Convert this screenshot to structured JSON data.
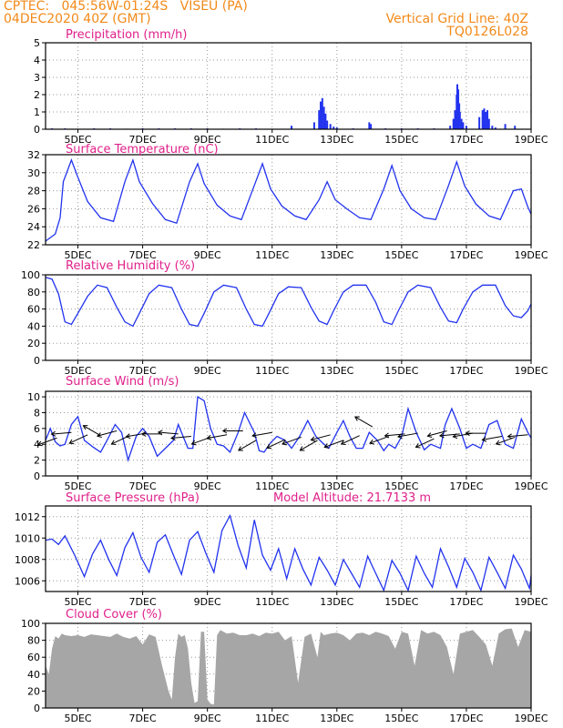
{
  "header": {
    "line1": "CPTEC:   045:56W-01:24S   VISEU (PA)",
    "line2": "04DEC2020 40Z (GMT)",
    "grid_note": "Vertical Grid Line: 40Z",
    "code": "TQ0126L028"
  },
  "colors": {
    "header": "#f28a1a",
    "title": "#e0208a",
    "series": "#2233ee",
    "cloud": "#a6a6a6",
    "grid": "#999999"
  },
  "x_axis": {
    "start": 4.0,
    "end": 19.0,
    "ticks": [
      5,
      7,
      9,
      11,
      13,
      15,
      17,
      19
    ],
    "tick_labels": [
      "5DEC",
      "7DEC",
      "9DEC",
      "11DEC",
      "13DEC",
      "15DEC",
      "17DEC",
      "19DEC"
    ]
  },
  "panels": [
    {
      "id": "precipitation",
      "title": "Precipitation (mm/h)",
      "title2": "",
      "ylim": [
        0,
        5
      ],
      "yticks": [
        0,
        1,
        2,
        3,
        4,
        5
      ],
      "ytick_labels": [
        "0",
        "1",
        "2",
        "3",
        "4",
        "5"
      ]
    },
    {
      "id": "temperature",
      "title": "Surface Temperature (nC)",
      "title2": "",
      "ylim": [
        22,
        32
      ],
      "yticks": [
        22,
        24,
        26,
        28,
        30,
        32
      ],
      "ytick_labels": [
        "22",
        "24",
        "26",
        "28",
        "30",
        "32"
      ]
    },
    {
      "id": "humidity",
      "title": "Relative Humidity (%)",
      "title2": "",
      "ylim": [
        0,
        100
      ],
      "yticks": [
        0,
        20,
        40,
        60,
        80,
        100
      ],
      "ytick_labels": [
        "0",
        "20",
        "40",
        "60",
        "80",
        "100"
      ]
    },
    {
      "id": "wind",
      "title": "Surface Wind (m/s)",
      "title2": "",
      "ylim": [
        0,
        10.7
      ],
      "yticks": [
        0,
        2,
        4,
        6,
        8,
        10
      ],
      "ytick_labels": [
        "0",
        "2",
        "4",
        "6",
        "8",
        "10"
      ]
    },
    {
      "id": "pressure",
      "title": "Surface Pressure (hPa)",
      "title2": "Model Altitude: 21.7133 m",
      "ylim": [
        1005,
        1013
      ],
      "yticks": [
        1006,
        1008,
        1010,
        1012
      ],
      "ytick_labels": [
        "1006",
        "1008",
        "1010",
        "1012"
      ]
    },
    {
      "id": "cloud",
      "title": "Cloud Cover (%)",
      "title2": "",
      "ylim": [
        0,
        100
      ],
      "yticks": [
        0,
        20,
        40,
        60,
        80,
        100
      ],
      "ytick_labels": [
        "0",
        "20",
        "40",
        "60",
        "80",
        "100"
      ]
    }
  ],
  "chart_data": [
    {
      "type": "bar",
      "title": "Precipitation (mm/h)",
      "ylim": [
        0,
        5
      ],
      "x": [
        4.2,
        4.6,
        5.0,
        5.5,
        6.0,
        6.5,
        7.0,
        7.5,
        8.0,
        8.5,
        9.0,
        9.5,
        10.0,
        10.5,
        11.0,
        11.6,
        12.3,
        12.45,
        12.5,
        12.55,
        12.6,
        12.65,
        12.7,
        12.8,
        12.9,
        13.0,
        13.5,
        14.0,
        14.05,
        14.5,
        15.0,
        15.5,
        16.0,
        16.5,
        16.6,
        16.65,
        16.7,
        16.72,
        16.75,
        16.78,
        16.8,
        16.85,
        16.9,
        17.0,
        17.4,
        17.5,
        17.55,
        17.6,
        17.65,
        17.7,
        17.8,
        17.9,
        18.2,
        18.5
      ],
      "values": [
        0.05,
        0.05,
        0.03,
        0.05,
        0.05,
        0.03,
        0.05,
        0.05,
        0.05,
        0.05,
        0.05,
        0.03,
        0.05,
        0.05,
        0.03,
        0.2,
        0.4,
        1.1,
        1.6,
        1.8,
        1.3,
        0.9,
        0.5,
        0.3,
        0.15,
        0.1,
        0.05,
        0.4,
        0.3,
        0.05,
        0.05,
        0.05,
        0.05,
        0.2,
        0.6,
        1.1,
        2.0,
        2.6,
        2.3,
        1.5,
        1.0,
        0.6,
        0.4,
        0.2,
        0.7,
        1.1,
        1.2,
        1.0,
        1.1,
        0.6,
        0.2,
        0.1,
        0.3,
        0.2
      ]
    },
    {
      "type": "line",
      "title": "Surface Temperature (nC)",
      "ylim": [
        22,
        32
      ],
      "x": [
        4.0,
        4.3,
        4.45,
        4.55,
        4.8,
        5.0,
        5.3,
        5.7,
        6.1,
        6.45,
        6.7,
        6.9,
        7.3,
        7.7,
        8.05,
        8.45,
        8.7,
        8.9,
        9.3,
        9.7,
        10.05,
        10.45,
        10.7,
        10.95,
        11.3,
        11.7,
        12.05,
        12.45,
        12.7,
        12.95,
        13.3,
        13.7,
        14.05,
        14.45,
        14.7,
        14.95,
        15.3,
        15.7,
        16.05,
        16.45,
        16.7,
        16.95,
        17.3,
        17.7,
        18.05,
        18.45,
        18.7,
        18.9,
        19.0
      ],
      "values": [
        22.4,
        23.2,
        25.0,
        29.0,
        31.4,
        29.5,
        26.8,
        25.0,
        24.6,
        29.0,
        31.4,
        29.0,
        26.6,
        24.8,
        24.4,
        29.0,
        31.0,
        28.8,
        26.4,
        25.2,
        24.8,
        28.6,
        31.0,
        28.2,
        26.3,
        25.2,
        24.8,
        27.0,
        29.0,
        27.0,
        26.0,
        25.0,
        24.8,
        28.2,
        30.8,
        28.0,
        26.0,
        25.0,
        24.8,
        28.6,
        31.2,
        28.5,
        26.5,
        25.2,
        24.8,
        28.0,
        28.2,
        26.2,
        25.4
      ]
    },
    {
      "type": "line",
      "title": "Relative Humidity (%)",
      "ylim": [
        0,
        100
      ],
      "x": [
        4.0,
        4.2,
        4.4,
        4.6,
        4.8,
        5.0,
        5.3,
        5.6,
        5.9,
        6.2,
        6.45,
        6.7,
        6.9,
        7.2,
        7.5,
        7.9,
        8.2,
        8.45,
        8.7,
        8.9,
        9.2,
        9.5,
        9.9,
        10.2,
        10.45,
        10.7,
        10.9,
        11.2,
        11.5,
        11.9,
        12.2,
        12.45,
        12.7,
        12.9,
        13.2,
        13.5,
        13.9,
        14.2,
        14.45,
        14.7,
        14.9,
        15.2,
        15.5,
        15.9,
        16.2,
        16.45,
        16.7,
        16.9,
        17.2,
        17.5,
        17.9,
        18.2,
        18.45,
        18.7,
        18.9,
        19.0
      ],
      "values": [
        97,
        95,
        78,
        45,
        42,
        55,
        75,
        88,
        85,
        62,
        45,
        40,
        55,
        78,
        88,
        85,
        60,
        42,
        40,
        55,
        80,
        88,
        85,
        60,
        42,
        40,
        55,
        78,
        86,
        85,
        62,
        46,
        42,
        58,
        80,
        88,
        88,
        68,
        45,
        42,
        58,
        80,
        88,
        85,
        62,
        46,
        44,
        60,
        80,
        88,
        88,
        64,
        52,
        50,
        58,
        66
      ]
    },
    {
      "type": "line",
      "title": "Surface Wind (m/s)",
      "ylim": [
        0,
        10.7
      ],
      "x": [
        4.0,
        4.15,
        4.3,
        4.45,
        4.6,
        4.8,
        5.0,
        5.2,
        5.45,
        5.7,
        5.9,
        6.15,
        6.35,
        6.55,
        6.8,
        7.0,
        7.2,
        7.45,
        7.7,
        7.95,
        8.1,
        8.4,
        8.55,
        8.7,
        8.9,
        9.1,
        9.3,
        9.5,
        9.7,
        9.95,
        10.15,
        10.45,
        10.6,
        10.75,
        10.95,
        11.15,
        11.4,
        11.6,
        11.85,
        12.1,
        12.35,
        12.55,
        12.75,
        13.0,
        13.2,
        13.4,
        13.6,
        13.8,
        14.0,
        14.25,
        14.45,
        14.6,
        14.8,
        15.0,
        15.2,
        15.45,
        15.7,
        15.9,
        16.2,
        16.35,
        16.55,
        16.8,
        17.0,
        17.2,
        17.45,
        17.7,
        17.95,
        18.2,
        18.45,
        18.7,
        18.9,
        19.0
      ],
      "values": [
        4.5,
        6.0,
        4.3,
        3.8,
        4.0,
        6.5,
        7.5,
        4.5,
        3.7,
        3.0,
        4.5,
        6.5,
        5.5,
        2.0,
        5.0,
        6.0,
        5.0,
        2.5,
        3.5,
        4.5,
        6.5,
        3.5,
        3.5,
        10.0,
        9.5,
        6.0,
        4.0,
        3.8,
        3.0,
        5.5,
        8.0,
        5.5,
        3.2,
        3.0,
        4.2,
        5.0,
        4.5,
        3.5,
        5.0,
        7.0,
        5.0,
        4.2,
        3.5,
        5.5,
        7.0,
        5.0,
        3.5,
        3.5,
        5.5,
        4.5,
        3.2,
        4.0,
        3.5,
        5.0,
        8.5,
        5.5,
        3.3,
        4.0,
        3.5,
        6.5,
        8.5,
        6.0,
        3.5,
        4.0,
        3.5,
        6.5,
        7.0,
        4.0,
        3.5,
        7.2,
        5.5,
        4.8
      ],
      "arrows": [
        {
          "x": 4.35,
          "y": 4.8,
          "deg": 200
        },
        {
          "x": 4.8,
          "y": 5.5,
          "deg": 185
        },
        {
          "x": 5.3,
          "y": 5.2,
          "deg": 205
        },
        {
          "x": 5.7,
          "y": 5.1,
          "deg": 150
        },
        {
          "x": 6.2,
          "y": 5.7,
          "deg": 195
        },
        {
          "x": 6.6,
          "y": 5.1,
          "deg": 205
        },
        {
          "x": 7.1,
          "y": 5.4,
          "deg": 190
        },
        {
          "x": 7.6,
          "y": 5.3,
          "deg": 180
        },
        {
          "x": 8.1,
          "y": 5.3,
          "deg": 175
        },
        {
          "x": 8.5,
          "y": 5.0,
          "deg": 185
        },
        {
          "x": 9.1,
          "y": 4.9,
          "deg": 200
        },
        {
          "x": 9.6,
          "y": 5.2,
          "deg": 190
        },
        {
          "x": 10.1,
          "y": 5.7,
          "deg": 180
        },
        {
          "x": 10.5,
          "y": 4.5,
          "deg": 210
        },
        {
          "x": 11.0,
          "y": 5.5,
          "deg": 190
        },
        {
          "x": 11.4,
          "y": 4.6,
          "deg": 205
        },
        {
          "x": 11.9,
          "y": 4.9,
          "deg": 200
        },
        {
          "x": 12.4,
          "y": 4.5,
          "deg": 210
        },
        {
          "x": 12.8,
          "y": 5.2,
          "deg": 195
        },
        {
          "x": 13.2,
          "y": 4.5,
          "deg": 200
        },
        {
          "x": 13.7,
          "y": 5.1,
          "deg": 205
        },
        {
          "x": 14.1,
          "y": 6.2,
          "deg": 150
        },
        {
          "x": 14.6,
          "y": 5.0,
          "deg": 200
        },
        {
          "x": 15.1,
          "y": 5.3,
          "deg": 185
        },
        {
          "x": 15.5,
          "y": 5.4,
          "deg": 190
        },
        {
          "x": 16.0,
          "y": 4.7,
          "deg": 205
        },
        {
          "x": 16.4,
          "y": 5.7,
          "deg": 195
        },
        {
          "x": 16.8,
          "y": 5.3,
          "deg": 185
        },
        {
          "x": 17.2,
          "y": 5.4,
          "deg": 190
        },
        {
          "x": 17.6,
          "y": 5.4,
          "deg": 180
        },
        {
          "x": 18.1,
          "y": 5.0,
          "deg": 190
        },
        {
          "x": 18.5,
          "y": 4.9,
          "deg": 200
        },
        {
          "x": 18.9,
          "y": 5.2,
          "deg": 185
        }
      ]
    },
    {
      "type": "line",
      "title": "Surface Pressure (hPa)",
      "ylim": [
        1005,
        1013
      ],
      "x": [
        4.0,
        4.2,
        4.4,
        4.6,
        4.9,
        5.2,
        5.45,
        5.7,
        5.95,
        6.2,
        6.45,
        6.7,
        6.95,
        7.2,
        7.45,
        7.7,
        7.95,
        8.2,
        8.45,
        8.7,
        8.95,
        9.2,
        9.45,
        9.7,
        9.95,
        10.2,
        10.45,
        10.7,
        10.95,
        11.2,
        11.45,
        11.7,
        11.95,
        12.2,
        12.45,
        12.7,
        12.95,
        13.2,
        13.45,
        13.7,
        13.95,
        14.2,
        14.45,
        14.7,
        14.95,
        15.2,
        15.45,
        15.7,
        15.95,
        16.2,
        16.45,
        16.7,
        16.95,
        17.2,
        17.45,
        17.7,
        17.95,
        18.2,
        18.45,
        18.7,
        18.95,
        19.0
      ],
      "values": [
        1009.8,
        1009.9,
        1009.4,
        1010.2,
        1008.4,
        1006.4,
        1008.5,
        1009.8,
        1008.0,
        1006.5,
        1009.1,
        1010.5,
        1008.2,
        1006.8,
        1009.6,
        1010.3,
        1008.4,
        1006.6,
        1009.8,
        1010.6,
        1008.6,
        1006.8,
        1010.7,
        1012.1,
        1009.3,
        1007.2,
        1011.7,
        1008.4,
        1007.0,
        1009.0,
        1006.2,
        1009.0,
        1007.1,
        1005.6,
        1008.2,
        1007.0,
        1005.6,
        1008.0,
        1006.7,
        1005.4,
        1008.3,
        1006.7,
        1005.1,
        1007.9,
        1006.7,
        1005.1,
        1008.3,
        1006.7,
        1005.4,
        1009.0,
        1007.3,
        1005.4,
        1008.1,
        1006.8,
        1005.1,
        1008.2,
        1006.8,
        1005.3,
        1008.4,
        1007.1,
        1005.3,
        1006.5
      ]
    },
    {
      "type": "area",
      "title": "Cloud Cover (%)",
      "ylim": [
        0,
        100
      ],
      "x": [
        4.0,
        4.1,
        4.2,
        4.3,
        4.4,
        4.5,
        4.6,
        4.8,
        5.0,
        5.2,
        5.4,
        5.6,
        5.8,
        6.0,
        6.2,
        6.4,
        6.6,
        6.8,
        7.0,
        7.2,
        7.4,
        7.6,
        7.8,
        7.9,
        8.0,
        8.1,
        8.2,
        8.3,
        8.4,
        8.5,
        8.6,
        8.7,
        8.8,
        8.9,
        9.0,
        9.1,
        9.2,
        9.3,
        9.4,
        9.6,
        9.8,
        10.0,
        10.2,
        10.4,
        10.6,
        10.8,
        11.0,
        11.2,
        11.4,
        11.6,
        11.8,
        12.0,
        12.2,
        12.4,
        12.5,
        12.6,
        12.8,
        13.0,
        13.2,
        13.4,
        13.6,
        13.8,
        14.0,
        14.2,
        14.4,
        14.6,
        14.8,
        15.0,
        15.2,
        15.4,
        15.6,
        15.8,
        16.0,
        16.2,
        16.4,
        16.6,
        16.8,
        17.0,
        17.2,
        17.4,
        17.6,
        17.8,
        18.0,
        18.2,
        18.4,
        18.6,
        18.8,
        19.0
      ],
      "values": [
        50,
        40,
        70,
        85,
        82,
        88,
        86,
        85,
        86,
        84,
        87,
        86,
        85,
        84,
        88,
        84,
        82,
        85,
        75,
        87,
        84,
        50,
        20,
        10,
        60,
        88,
        84,
        86,
        70,
        30,
        6,
        8,
        90,
        90,
        10,
        5,
        4,
        86,
        92,
        88,
        89,
        86,
        86,
        88,
        85,
        89,
        88,
        90,
        80,
        85,
        30,
        84,
        88,
        60,
        90,
        86,
        88,
        89,
        86,
        80,
        88,
        89,
        86,
        90,
        88,
        85,
        70,
        90,
        88,
        50,
        92,
        88,
        90,
        86,
        72,
        40,
        88,
        90,
        92,
        84,
        75,
        50,
        88,
        93,
        94,
        72,
        92,
        90
      ]
    }
  ]
}
